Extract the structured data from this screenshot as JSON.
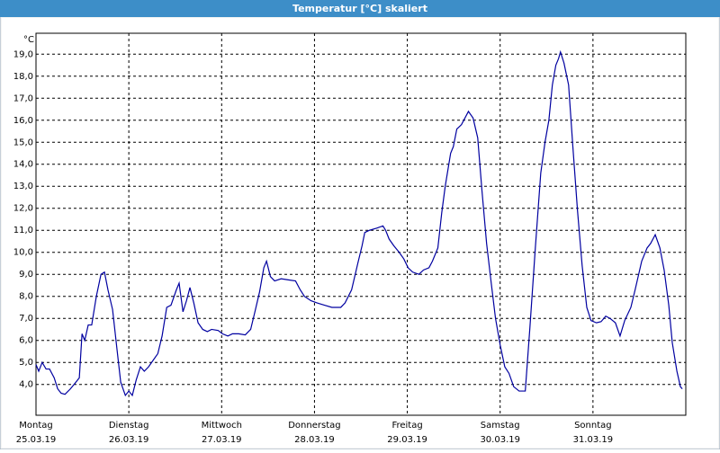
{
  "chart_data": {
    "type": "line",
    "title": "Temperatur [°C] skaliert",
    "y_label": "°C",
    "color": "#0000a0",
    "grid": true,
    "xlim": [
      0,
      168
    ],
    "ylim": [
      2.6,
      19.95
    ],
    "xticks": [
      {
        "value": 0,
        "label": "Montag",
        "date": "25.03.19"
      },
      {
        "value": 24,
        "label": "Dienstag",
        "date": "26.03.19"
      },
      {
        "value": 48,
        "label": "Mittwoch",
        "date": "27.03.19"
      },
      {
        "value": 72,
        "label": "Donnerstag",
        "date": "28.03.19"
      },
      {
        "value": 96,
        "label": "Freitag",
        "date": "29.03.19"
      },
      {
        "value": 120,
        "label": "Samstag",
        "date": "30.03.19"
      },
      {
        "value": 144,
        "label": "Sonntag",
        "date": "31.03.19"
      }
    ],
    "yticks": [
      {
        "value": 4,
        "label": "4,0"
      },
      {
        "value": 5,
        "label": "5,0"
      },
      {
        "value": 6,
        "label": "6,0"
      },
      {
        "value": 7,
        "label": "7,0"
      },
      {
        "value": 8,
        "label": "8,0"
      },
      {
        "value": 9,
        "label": "9,0"
      },
      {
        "value": 10,
        "label": "10,0"
      },
      {
        "value": 11,
        "label": "11,0"
      },
      {
        "value": 12,
        "label": "12,0"
      },
      {
        "value": 13,
        "label": "13,0"
      },
      {
        "value": 14,
        "label": "14,0"
      },
      {
        "value": 15,
        "label": "15,0"
      },
      {
        "value": 16,
        "label": "16,0"
      },
      {
        "value": 17,
        "label": "17,0"
      },
      {
        "value": 18,
        "label": "18,0"
      },
      {
        "value": 19,
        "label": "19,0"
      }
    ],
    "x": [
      0,
      0.7,
      1.6,
      2.6,
      3.5,
      4.7,
      5.6,
      6.5,
      7.5,
      8.9,
      10.3,
      11.2,
      11.9,
      12.6,
      13.5,
      14.4,
      15.6,
      16.8,
      17.7,
      18.6,
      19.8,
      21.0,
      21.9,
      23.1,
      24.0,
      24.9,
      25.9,
      27.0,
      28.0,
      29.1,
      30.3,
      31.5,
      32.6,
      33.8,
      34.9,
      36.3,
      37.0,
      38.0,
      38.9,
      39.8,
      40.8,
      41.9,
      43.1,
      44.3,
      45.4,
      47.1,
      48.2,
      49.6,
      50.8,
      52.4,
      54.1,
      55.5,
      56.6,
      57.8,
      58.9,
      59.6,
      60.6,
      61.7,
      63.4,
      65.2,
      67.1,
      68.3,
      69.4,
      71.1,
      72.7,
      74.6,
      76.5,
      78.8,
      79.9,
      81.6,
      83.2,
      84.3,
      85.0,
      86.2,
      88.1,
      89.7,
      90.4,
      91.3,
      92.5,
      93.9,
      95.1,
      96.2,
      97.4,
      99.0,
      100.2,
      101.6,
      102.5,
      103.9,
      104.9,
      105.8,
      107.2,
      107.9,
      108.8,
      110.0,
      110.9,
      111.8,
      113.0,
      114.2,
      115.3,
      116.5,
      117.7,
      118.8,
      120.0,
      121.2,
      122.3,
      123.5,
      124.9,
      126.5,
      127.7,
      129.1,
      130.5,
      131.6,
      132.6,
      133.5,
      134.4,
      135.1,
      135.6,
      136.5,
      137.7,
      138.8,
      140.0,
      141.2,
      142.4,
      143.5,
      144.9,
      146.1,
      147.3,
      148.4,
      149.8,
      151.0,
      152.2,
      153.8,
      154.9,
      156.6,
      158.0,
      158.9,
      160.1,
      161.3,
      162.4,
      163.6,
      164.5,
      165.7,
      166.6,
      167.1
    ],
    "values": [
      4.9,
      4.6,
      5.0,
      4.7,
      4.7,
      4.3,
      3.8,
      3.6,
      3.55,
      3.8,
      4.1,
      4.3,
      6.3,
      6.0,
      6.7,
      6.7,
      8.0,
      9.0,
      9.1,
      8.3,
      7.4,
      5.5,
      4.1,
      3.5,
      3.7,
      3.5,
      4.2,
      4.8,
      4.6,
      4.8,
      5.1,
      5.4,
      6.2,
      7.5,
      7.6,
      8.3,
      8.6,
      7.3,
      7.8,
      8.4,
      7.7,
      6.8,
      6.5,
      6.4,
      6.5,
      6.45,
      6.3,
      6.2,
      6.3,
      6.3,
      6.25,
      6.5,
      7.3,
      8.2,
      9.3,
      9.6,
      8.9,
      8.7,
      8.8,
      8.75,
      8.7,
      8.3,
      8.0,
      7.8,
      7.7,
      7.6,
      7.5,
      7.5,
      7.7,
      8.3,
      9.5,
      10.3,
      10.9,
      11.0,
      11.1,
      11.2,
      11.0,
      10.6,
      10.3,
      10.0,
      9.7,
      9.3,
      9.1,
      9.0,
      9.2,
      9.3,
      9.6,
      10.2,
      11.8,
      13.0,
      14.5,
      14.8,
      15.6,
      15.8,
      16.1,
      16.4,
      16.1,
      15.2,
      12.8,
      10.4,
      8.6,
      7.0,
      5.8,
      4.8,
      4.5,
      3.9,
      3.7,
      3.7,
      6.6,
      10.2,
      13.6,
      15.0,
      16.0,
      17.6,
      18.5,
      18.8,
      19.1,
      18.6,
      17.6,
      14.8,
      11.9,
      9.4,
      7.5,
      6.9,
      6.8,
      6.85,
      7.1,
      7.0,
      6.8,
      6.2,
      6.9,
      7.5,
      8.3,
      9.6,
      10.2,
      10.4,
      10.8,
      10.2,
      9.2,
      7.6,
      5.9,
      4.6,
      3.9,
      3.8
    ]
  }
}
